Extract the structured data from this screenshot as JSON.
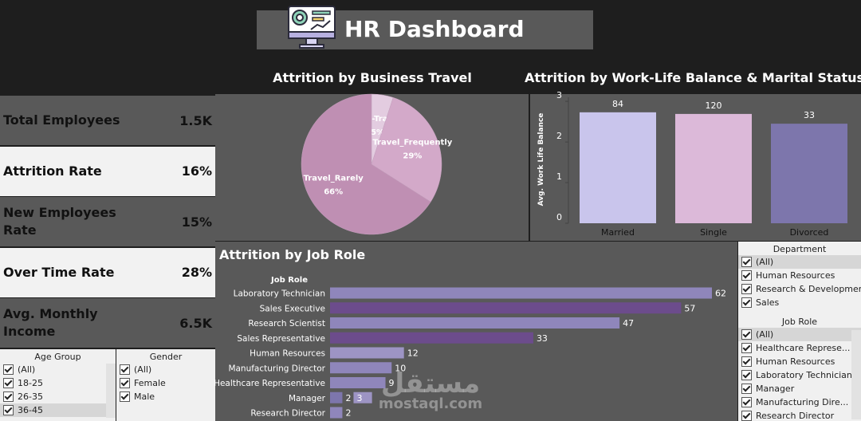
{
  "header": {
    "title": "HR Dashboard"
  },
  "kpis": [
    {
      "label": "Total Employees",
      "value": "1.5K"
    },
    {
      "label": "Attrition Rate",
      "value": "16%"
    },
    {
      "label": "New Employees Rate",
      "value": "15%"
    },
    {
      "label": "Over Time Rate",
      "value": "28%"
    },
    {
      "label": "Avg. Monthly Income",
      "value": "6.5K"
    }
  ],
  "filters": [
    {
      "title": "Age Group",
      "items": [
        "(All)",
        "18-25",
        "26-35",
        "36-45"
      ]
    },
    {
      "title": "Gender",
      "items": [
        "(All)",
        "Female",
        "Male"
      ]
    },
    {
      "title": "Department",
      "items": [
        "(All)",
        "Human Resources",
        "Research & Development",
        "Sales"
      ]
    },
    {
      "title": "Job Role",
      "items": [
        "(All)",
        "Healthcare Represe...",
        "Human Resources",
        "Laboratory Technician",
        "Manager",
        "Manufacturing Dire...",
        "Research Director"
      ]
    }
  ],
  "watermark": {
    "arabic": "مستقل",
    "latin": "mostaql.com"
  },
  "chart_data": [
    {
      "type": "pie",
      "title": "Attrition by Business Travel",
      "categories": [
        "Non-Travel",
        "Travel_Frequently",
        "Travel_Rarely"
      ],
      "values": [
        5,
        29,
        66
      ],
      "value_labels": [
        "5%",
        "29%",
        "66%"
      ],
      "colors": [
        "#e3cce0",
        "#d3a9c9",
        "#bf8fb3"
      ]
    },
    {
      "type": "bar",
      "title": "Attrition by Work-Life Balance & Marital Status",
      "y_label": "Avg. Work Life Balance",
      "categories": [
        "Married",
        "Single",
        "Divorced"
      ],
      "values": [
        2.73,
        2.69,
        2.45
      ],
      "bar_labels": [
        84,
        120,
        33
      ],
      "colors": [
        "#c9c5ec",
        "#dcb9d9",
        "#7d76ac"
      ],
      "ylim": [
        0,
        3.1
      ],
      "yticks": [
        0,
        1,
        2,
        3
      ]
    },
    {
      "type": "hbar",
      "title": "Attrition by Job Role",
      "category_header": "Job Role",
      "categories": [
        "Laboratory Technician",
        "Sales Executive",
        "Research Scientist",
        "Sales Representative",
        "Human Resources",
        "Manufacturing Director",
        "Healthcare Representative",
        "Manager",
        "Research Director"
      ],
      "values": [
        62,
        57,
        47,
        33,
        12,
        10,
        9,
        2,
        2
      ],
      "stack_values": [
        null,
        null,
        null,
        null,
        null,
        null,
        null,
        3,
        null
      ],
      "colors": [
        "#8f86bb",
        "#6c4c8c",
        "#8f86bb",
        "#6c4c8c",
        "#9d94c4",
        "#8f86bb",
        "#8f86bb",
        "#7d76ac",
        "#8f86bb"
      ],
      "stack_color": "#9d94c4"
    }
  ]
}
